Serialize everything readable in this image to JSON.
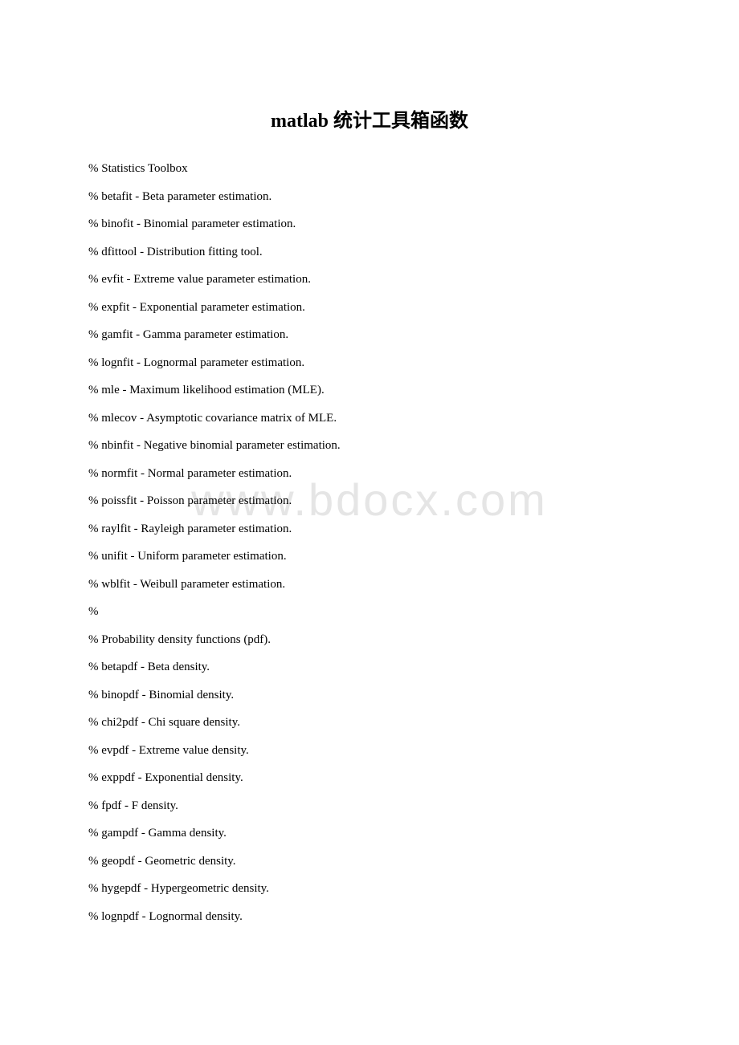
{
  "title": "matlab 统计工具箱函数",
  "watermark": "www.bdocx.com",
  "lines": [
    "% Statistics Toolbox",
    "% betafit - Beta parameter estimation.",
    "% binofit - Binomial parameter estimation.",
    "% dfittool - Distribution fitting tool.",
    "% evfit - Extreme value parameter estimation.",
    "% expfit - Exponential parameter estimation.",
    "% gamfit - Gamma parameter estimation.",
    "% lognfit - Lognormal parameter estimation.",
    "% mle - Maximum likelihood estimation (MLE).",
    "% mlecov - Asymptotic covariance matrix of MLE.",
    "% nbinfit - Negative binomial parameter estimation.",
    "% normfit - Normal parameter estimation.",
    "% poissfit - Poisson parameter estimation.",
    "% raylfit - Rayleigh parameter estimation.",
    "% unifit - Uniform parameter estimation.",
    "% wblfit - Weibull parameter estimation.",
    "%",
    "% Probability density functions (pdf).",
    "% betapdf - Beta density.",
    "% binopdf - Binomial density.",
    "% chi2pdf - Chi square density.",
    "% evpdf - Extreme value density.",
    "% exppdf - Exponential density.",
    "% fpdf - F density.",
    "% gampdf - Gamma density.",
    "% geopdf - Geometric density.",
    "% hygepdf - Hypergeometric density.",
    "% lognpdf - Lognormal density."
  ]
}
